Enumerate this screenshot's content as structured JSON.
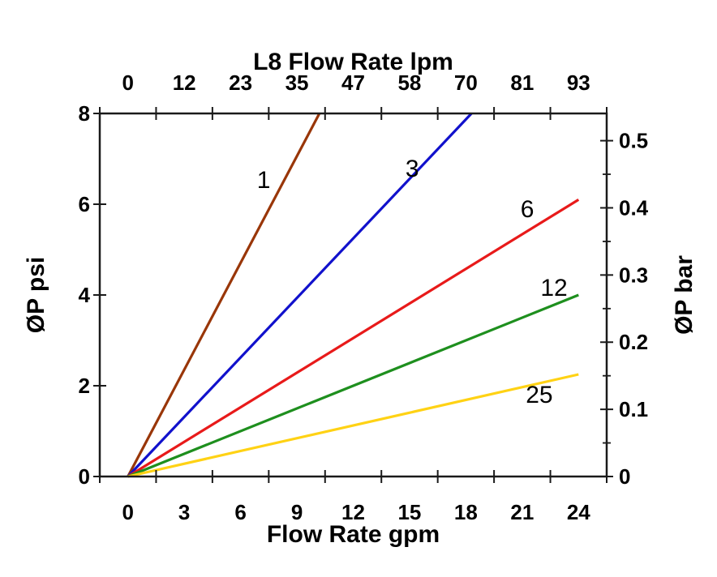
{
  "chart_data": {
    "type": "line",
    "top_axis": {
      "title": "L8  Flow Rate lpm",
      "tick_labels": [
        "0",
        "12",
        "23",
        "35",
        "47",
        "58",
        "70",
        "81",
        "93"
      ]
    },
    "bottom_axis": {
      "title": "Flow Rate gpm",
      "tick_labels": [
        "0",
        "3",
        "6",
        "9",
        "12",
        "15",
        "18",
        "21",
        "24"
      ],
      "data_values": [
        0,
        3,
        6,
        9,
        12,
        15,
        18,
        21,
        24
      ],
      "range": [
        -1.5,
        25.5
      ]
    },
    "left_axis": {
      "title": "ØP psi",
      "ticks": [
        0,
        2,
        4,
        6,
        8
      ],
      "range": [
        0,
        8
      ]
    },
    "right_axis": {
      "title": "ØP bar",
      "major_ticks": [
        0,
        0.1,
        0.2,
        0.3,
        0.4,
        0.5
      ],
      "minor_ticks": [
        0.05,
        0.15,
        0.25,
        0.35,
        0.45
      ],
      "psi_per_bar": 14.8
    },
    "series": [
      {
        "label": "1",
        "color": "#993608",
        "points_gpm_psi": [
          [
            0,
            0
          ],
          [
            10.2,
            8
          ]
        ],
        "label_at": [
          7.23,
          6.54
        ]
      },
      {
        "label": "3",
        "color": "#1111cc",
        "points_gpm_psi": [
          [
            0,
            0
          ],
          [
            18.3,
            8
          ]
        ],
        "label_at": [
          15.14,
          6.79
        ]
      },
      {
        "label": "6",
        "color": "#e81a1a",
        "points_gpm_psi": [
          [
            0,
            0
          ],
          [
            24,
            6.1
          ]
        ],
        "label_at": [
          21.27,
          5.89
        ]
      },
      {
        "label": "12",
        "color": "#1e8f1e",
        "points_gpm_psi": [
          [
            0,
            0
          ],
          [
            24,
            4.0
          ]
        ],
        "label_at": [
          22.69,
          4.16
        ]
      },
      {
        "label": "25",
        "color": "#ffd214",
        "points_gpm_psi": [
          [
            0,
            0
          ],
          [
            24,
            2.25
          ]
        ],
        "label_at": [
          21.91,
          1.8
        ]
      }
    ],
    "frame_color": "#1a1a1a"
  }
}
